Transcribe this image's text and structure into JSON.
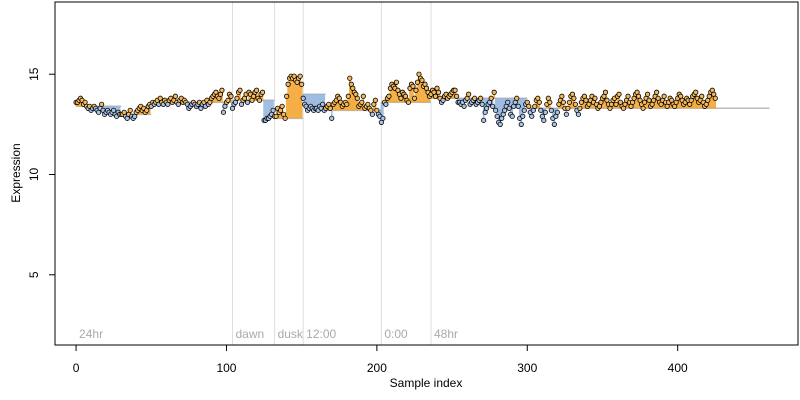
{
  "chart_data": {
    "type": "scatter",
    "title": "",
    "xlabel": "Sample index",
    "ylabel": "Expression",
    "xlim": [
      -14,
      480
    ],
    "ylim": [
      1.5,
      18.6
    ],
    "xticks": [
      0,
      100,
      200,
      300,
      400
    ],
    "yticks": [
      5,
      10,
      15
    ],
    "grid": false,
    "colors": {
      "point_fill_high": "#f5b85c",
      "point_fill_low": "#a9c3e6",
      "point_outline": "#000000",
      "fit_line_high": "#f2a022",
      "fit_line_low": "#8fb0dc",
      "stem": "#f2a022",
      "divider": "#dddddd",
      "annotation": "#aaaaaa"
    },
    "segments": [
      {
        "label": "24hr",
        "start": 0,
        "end": 104
      },
      {
        "label": "dawn",
        "start": 104,
        "end": 132
      },
      {
        "label": "dusk",
        "start": 132,
        "end": 151
      },
      {
        "label": "12:00",
        "start": 151,
        "end": 203
      },
      {
        "label": "0:00",
        "start": 203,
        "end": 236
      },
      {
        "label": "48hr",
        "start": 236,
        "end": 461
      }
    ],
    "level_steps": [
      {
        "x0": 0,
        "x1": 30,
        "y": 13.4
      },
      {
        "x0": 30,
        "x1": 50,
        "y": 13.0
      },
      {
        "x0": 50,
        "x1": 104,
        "y": 13.6
      },
      {
        "x0": 104,
        "x1": 132,
        "y": 13.7
      },
      {
        "x0": 132,
        "x1": 151,
        "y": 12.8
      },
      {
        "x0": 151,
        "x1": 166,
        "y": 14.0
      },
      {
        "x0": 166,
        "x1": 203,
        "y": 13.2
      },
      {
        "x0": 203,
        "x1": 236,
        "y": 13.6
      },
      {
        "x0": 236,
        "x1": 300,
        "y": 13.8
      },
      {
        "x0": 300,
        "x1": 461,
        "y": 13.3
      }
    ],
    "series": [
      {
        "values": [
          13.6,
          13.6,
          13.7,
          13.8,
          13.7,
          13.5,
          13.6,
          13.4,
          13.3,
          13.4,
          13.2,
          13.3,
          13.4,
          13.3,
          13.2,
          13.1,
          13.3,
          13.5,
          13.2,
          13.0,
          13.1,
          13.2,
          13.1,
          13.0,
          13.1,
          13.2,
          13.0,
          12.9,
          13.1,
          13.0,
          13.0,
          13.0,
          13.1,
          12.9,
          12.8,
          13.0,
          13.2,
          12.9,
          12.8,
          12.9,
          13.1,
          13.2,
          13.3,
          13.4,
          13.2,
          13.3,
          13.1,
          13.2,
          13.4,
          13.5,
          13.4,
          13.6,
          13.5,
          13.6,
          13.7,
          13.5,
          13.8,
          13.6,
          13.5,
          13.7,
          13.6,
          13.5,
          13.7,
          13.8,
          13.6,
          13.7,
          13.9,
          13.6,
          13.5,
          13.7,
          13.8,
          13.6,
          13.7,
          13.6,
          13.5,
          13.3,
          13.4,
          13.5,
          13.6,
          13.5,
          13.4,
          13.5,
          13.6,
          13.3,
          13.5,
          13.6,
          13.4,
          13.7,
          13.5,
          13.6,
          13.8,
          13.9,
          14.0,
          14.1,
          13.9,
          13.8,
          14.0,
          14.2,
          13.1,
          13.4,
          13.6,
          13.7,
          14.0,
          13.9,
          13.3,
          13.5,
          13.6,
          13.8,
          14.1,
          14.2,
          13.5,
          13.7,
          13.8,
          14.0,
          13.6,
          14.1,
          14.0,
          13.7,
          13.9,
          14.1,
          14.2,
          13.8,
          13.7,
          14.0,
          14.1,
          12.7,
          12.7,
          12.8,
          12.8,
          12.9,
          13.0,
          13.2,
          12.9,
          12.9,
          13.3,
          13.1,
          13.2,
          13.4,
          13.0,
          12.8,
          13.9,
          14.5,
          14.8,
          14.9,
          14.8,
          14.9,
          14.7,
          14.6,
          14.8,
          14.9,
          14.5,
          13.8,
          13.5,
          13.4,
          13.2,
          13.3,
          13.4,
          13.3,
          13.2,
          13.3,
          13.3,
          13.2,
          13.4,
          13.3,
          13.5,
          13.2,
          13.3,
          13.4,
          13.5,
          13.3,
          12.8,
          13.5,
          13.6,
          13.7,
          13.9,
          13.8,
          13.6,
          13.4,
          13.5,
          13.6,
          13.5,
          13.9,
          14.8,
          14.5,
          14.3,
          14.1,
          14.0,
          13.8,
          13.4,
          13.5,
          13.6,
          13.9,
          13.3,
          13.4,
          13.5,
          13.3,
          13.2,
          13.0,
          13.5,
          13.7,
          13.2,
          13.0,
          12.9,
          12.6,
          12.8,
          13.6,
          13.5,
          13.8,
          13.9,
          14.3,
          14.5,
          14.4,
          14.3,
          14.6,
          14.2,
          14.0,
          13.8,
          14.1,
          14.0,
          13.9,
          13.7,
          13.6,
          14.3,
          14.5,
          14.4,
          13.8,
          14.2,
          14.6,
          15.0,
          14.8,
          14.7,
          14.4,
          14.5,
          14.3,
          14.1,
          13.9,
          14.0,
          14.2,
          14.1,
          13.9,
          14.3,
          14.1,
          13.8,
          13.6,
          13.7,
          13.9,
          14.0,
          13.8,
          13.9,
          14.0,
          14.1,
          14.2,
          14.2,
          13.9,
          13.6,
          13.6,
          13.5,
          13.6,
          13.4,
          13.7,
          13.8,
          14.0,
          13.5,
          13.6,
          13.7,
          13.8,
          13.5,
          13.6,
          13.7,
          13.8,
          13.5,
          12.7,
          13.1,
          13.3,
          13.5,
          13.6,
          13.8,
          13.4,
          14.1,
          13.2,
          12.9,
          12.6,
          12.5,
          12.8,
          13.0,
          13.2,
          13.4,
          13.6,
          13.3,
          13.0,
          12.9,
          13.4,
          13.6,
          13.8,
          13.4,
          12.8,
          12.5,
          12.9,
          13.2,
          13.5,
          13.6,
          13.4,
          13.1,
          12.9,
          13.2,
          13.4,
          13.7,
          13.8,
          13.6,
          13.2,
          12.9,
          12.7,
          13.1,
          13.5,
          13.8,
          13.6,
          13.2,
          12.8,
          12.5,
          12.9,
          13.1,
          13.5,
          13.7,
          13.9,
          13.6,
          13.3,
          13.0,
          13.3,
          13.6,
          13.9,
          14.0,
          13.8,
          13.5,
          13.2,
          13.0,
          13.3,
          13.6,
          13.8,
          13.9,
          13.7,
          13.4,
          13.5,
          13.7,
          13.9,
          13.6,
          13.8,
          13.5,
          13.3,
          13.4,
          13.6,
          13.8,
          13.9,
          14.1,
          13.7,
          13.5,
          13.3,
          13.5,
          13.7,
          13.8,
          13.5,
          13.9,
          14.0,
          13.6,
          13.4,
          13.3,
          13.5,
          13.7,
          13.9,
          13.6,
          13.4,
          13.6,
          13.8,
          14.0,
          14.1,
          13.9,
          13.7,
          13.5,
          13.3,
          13.6,
          13.8,
          14.0,
          13.7,
          13.4,
          13.5,
          13.7,
          13.9,
          14.1,
          13.8,
          13.6,
          13.5,
          13.7,
          13.9,
          13.6,
          13.4,
          13.6,
          13.8,
          13.7,
          13.5,
          13.4,
          13.6,
          13.8,
          14.0,
          13.9,
          13.7,
          13.5,
          13.6,
          13.8,
          13.7,
          13.5,
          13.7,
          13.9,
          14.0,
          14.1,
          13.8,
          13.6,
          13.7,
          13.9,
          13.6,
          13.4,
          13.5,
          13.7,
          13.9,
          14.1,
          14.2,
          14.0,
          13.8
        ]
      }
    ]
  }
}
